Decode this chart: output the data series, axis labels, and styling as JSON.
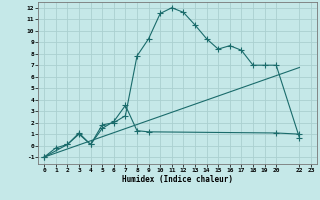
{
  "background_color": "#c5e8e8",
  "grid_color": "#aad0d0",
  "line_color": "#1a6b6b",
  "xlabel": "Humidex (Indice chaleur)",
  "xlim": [
    -0.5,
    23.5
  ],
  "ylim": [
    -1.6,
    12.5
  ],
  "xticks": [
    0,
    1,
    2,
    3,
    4,
    5,
    6,
    7,
    8,
    9,
    10,
    11,
    12,
    13,
    14,
    15,
    16,
    17,
    18,
    19,
    20,
    22,
    23
  ],
  "yticks": [
    -1,
    0,
    1,
    2,
    3,
    4,
    5,
    6,
    7,
    8,
    9,
    10,
    11,
    12
  ],
  "line1_x": [
    0,
    1,
    2,
    3,
    4,
    5,
    6,
    7,
    8,
    9,
    10,
    11,
    12,
    13,
    14,
    15,
    16,
    17,
    18,
    19,
    20,
    22
  ],
  "line1_y": [
    -1,
    -0.2,
    0.1,
    1.0,
    0.1,
    1.8,
    2.0,
    2.6,
    7.8,
    9.3,
    11.5,
    12.0,
    11.6,
    10.5,
    9.3,
    8.4,
    8.7,
    8.3,
    7.0,
    7.0,
    7.0,
    0.7
  ],
  "line2_x": [
    0,
    2,
    3,
    4,
    5,
    6,
    7,
    8,
    9,
    20,
    22
  ],
  "line2_y": [
    -1,
    0.1,
    1.1,
    0.1,
    1.5,
    2.1,
    3.5,
    1.3,
    1.2,
    1.1,
    1.0
  ],
  "line3_x": [
    0,
    22
  ],
  "line3_y": [
    -1,
    6.8
  ]
}
